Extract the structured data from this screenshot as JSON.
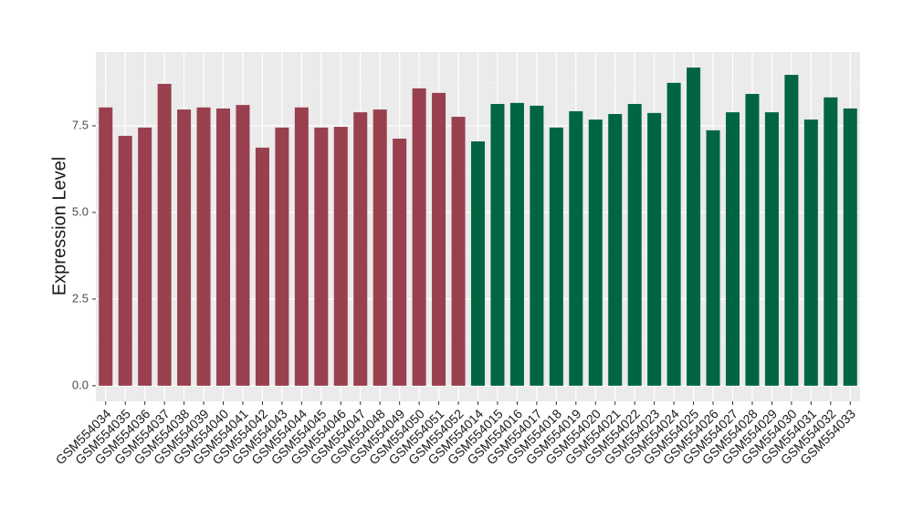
{
  "chart_data": {
    "type": "bar",
    "y_label": "Expression Level",
    "categories": [
      "GSM554034",
      "GSM554035",
      "GSM554036",
      "GSM554037",
      "GSM554038",
      "GSM554039",
      "GSM554040",
      "GSM554041",
      "GSM554042",
      "GSM554043",
      "GSM554044",
      "GSM554045",
      "GSM554046",
      "GSM554047",
      "GSM554048",
      "GSM554049",
      "GSM554050",
      "GSM554051",
      "GSM554052",
      "GSM554014",
      "GSM554015",
      "GSM554016",
      "GSM554017",
      "GSM554018",
      "GSM554019",
      "GSM554020",
      "GSM554021",
      "GSM554022",
      "GSM554023",
      "GSM554024",
      "GSM554025",
      "GSM554026",
      "GSM554027",
      "GSM554028",
      "GSM554029",
      "GSM554030",
      "GSM554031",
      "GSM554032",
      "GSM554033"
    ],
    "values": [
      8.03,
      7.21,
      7.45,
      8.71,
      7.97,
      8.03,
      8.0,
      8.1,
      6.87,
      7.45,
      8.03,
      7.45,
      7.47,
      7.89,
      7.97,
      7.13,
      8.58,
      8.45,
      7.76,
      7.05,
      8.13,
      8.16,
      8.08,
      7.45,
      7.92,
      7.68,
      7.84,
      8.13,
      7.87,
      8.74,
      9.18,
      7.37,
      7.89,
      8.42,
      7.89,
      8.97,
      7.68,
      8.32,
      8.0
    ],
    "colors": [
      "#99404f",
      "#99404f",
      "#99404f",
      "#99404f",
      "#99404f",
      "#99404f",
      "#99404f",
      "#99404f",
      "#99404f",
      "#99404f",
      "#99404f",
      "#99404f",
      "#99404f",
      "#99404f",
      "#99404f",
      "#99404f",
      "#99404f",
      "#99404f",
      "#99404f",
      "#006641",
      "#006641",
      "#006641",
      "#006641",
      "#006641",
      "#006641",
      "#006641",
      "#006641",
      "#006641",
      "#006641",
      "#006641",
      "#006641",
      "#006641",
      "#006641",
      "#006641",
      "#006641",
      "#006641",
      "#006641",
      "#006641",
      "#006641"
    ],
    "ylim": [
      -0.45,
      9.63
    ],
    "yticks": [
      {
        "value": 0,
        "label": "0.0"
      },
      2.5,
      {
        "value": 5,
        "label": "5.0"
      },
      7.5
    ],
    "grid": true
  }
}
